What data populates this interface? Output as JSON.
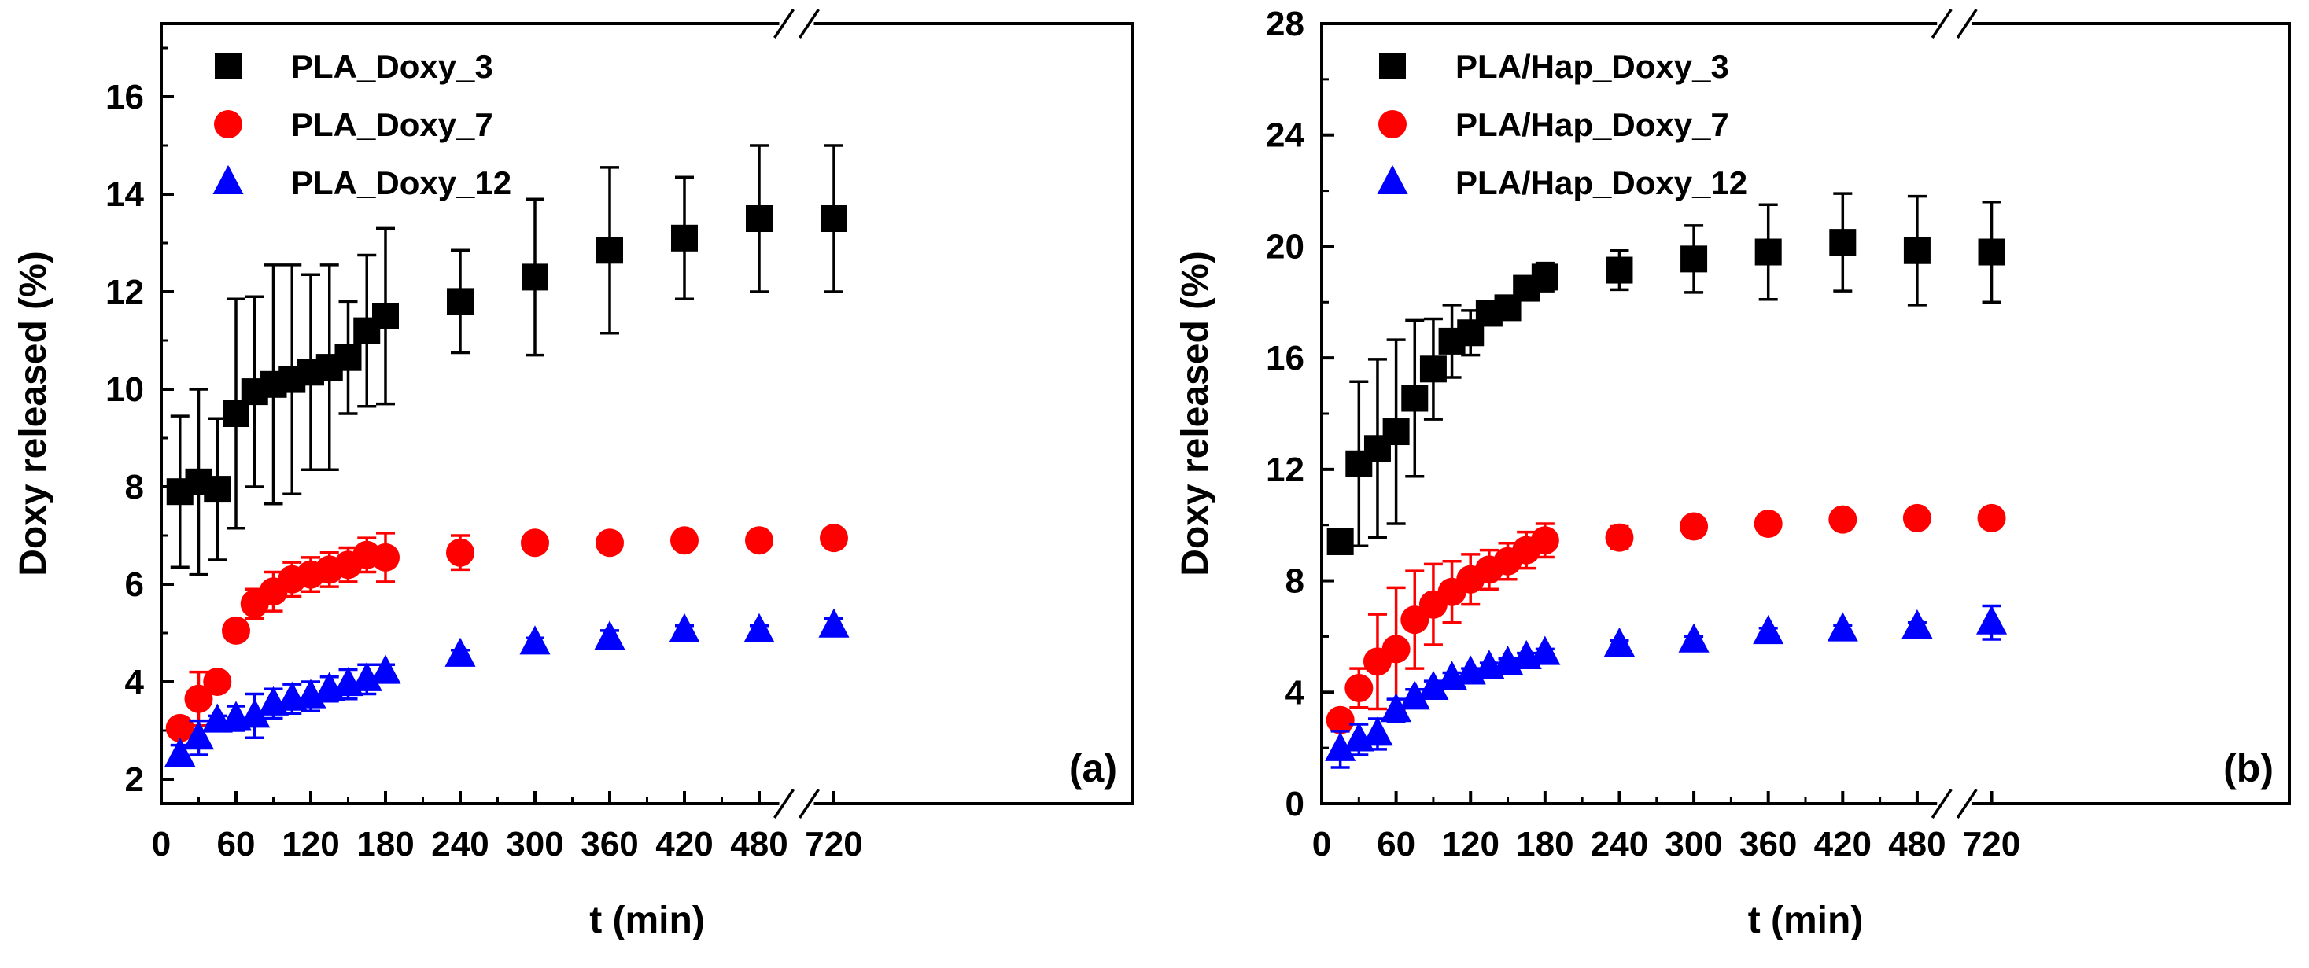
{
  "chart_data": [
    {
      "type": "scatter",
      "panel_label": "(a)",
      "xlabel": "t (min)",
      "ylabel": "Doxy released (%)",
      "xlim": [
        0,
        780
      ],
      "ylim": [
        1.5,
        17.5
      ],
      "x_ticks": [
        0,
        60,
        120,
        180,
        240,
        300,
        360,
        420,
        480,
        720
      ],
      "y_ticks": [
        2,
        4,
        6,
        8,
        10,
        12,
        14,
        16
      ],
      "axis_break": "between 480 and 720",
      "legend_position": "top-left",
      "series": [
        {
          "name": "PLA_Doxy_3",
          "marker": "square",
          "color": "#000000",
          "x": [
            15,
            30,
            45,
            60,
            75,
            90,
            105,
            120,
            135,
            150,
            165,
            180,
            240,
            300,
            360,
            420,
            480,
            720
          ],
          "y": [
            7.9,
            8.1,
            7.95,
            9.5,
            9.95,
            10.1,
            10.2,
            10.35,
            10.45,
            10.65,
            11.2,
            11.5,
            11.8,
            12.3,
            12.85,
            13.1,
            13.5,
            13.5
          ],
          "err": [
            1.55,
            1.9,
            1.45,
            2.35,
            1.95,
            2.45,
            2.35,
            2.0,
            2.1,
            1.15,
            1.55,
            1.8,
            1.05,
            1.6,
            1.7,
            1.25,
            1.5,
            1.5
          ]
        },
        {
          "name": "PLA_Doxy_7",
          "marker": "circle",
          "color": "#ff0000",
          "x": [
            15,
            30,
            45,
            60,
            75,
            90,
            105,
            120,
            135,
            150,
            165,
            180,
            240,
            300,
            360,
            420,
            480,
            720
          ],
          "y": [
            3.05,
            3.65,
            4.0,
            5.05,
            5.6,
            5.85,
            6.1,
            6.2,
            6.3,
            6.4,
            6.6,
            6.55,
            6.65,
            6.85,
            6.85,
            6.9,
            6.9,
            6.95
          ],
          "err": [
            0.05,
            0.55,
            0.05,
            0.2,
            0.3,
            0.4,
            0.35,
            0.35,
            0.35,
            0.35,
            0.35,
            0.5,
            0.35,
            0.1,
            0.15,
            0.1,
            0.1,
            0.1
          ]
        },
        {
          "name": "PLA_Doxy_12",
          "marker": "triangle",
          "color": "#0000ff",
          "x": [
            15,
            30,
            45,
            60,
            75,
            90,
            105,
            120,
            135,
            150,
            165,
            180,
            240,
            300,
            360,
            420,
            480,
            720
          ],
          "y": [
            2.5,
            2.85,
            3.2,
            3.25,
            3.3,
            3.55,
            3.65,
            3.7,
            3.85,
            3.95,
            4.05,
            4.2,
            4.55,
            4.8,
            4.9,
            5.05,
            5.05,
            5.15
          ],
          "err": [
            0.2,
            0.35,
            0.1,
            0.25,
            0.45,
            0.3,
            0.3,
            0.3,
            0.25,
            0.3,
            0.3,
            0.15,
            0.1,
            0.1,
            0.15,
            0.1,
            0.1,
            0.15
          ]
        }
      ]
    },
    {
      "type": "scatter",
      "panel_label": "(b)",
      "xlabel": "t (min)",
      "ylabel": "Doxy released (%)",
      "xlim": [
        0,
        780
      ],
      "ylim": [
        0,
        28
      ],
      "x_ticks": [
        0,
        60,
        120,
        180,
        240,
        300,
        360,
        420,
        480,
        720
      ],
      "y_ticks": [
        0,
        4,
        8,
        12,
        16,
        20,
        24,
        28
      ],
      "axis_break": "between 480 and 720",
      "legend_position": "top-left",
      "series": [
        {
          "name": "PLA/Hap_Doxy_3",
          "marker": "square",
          "color": "#000000",
          "x": [
            15,
            30,
            45,
            60,
            75,
            90,
            105,
            120,
            135,
            150,
            165,
            180,
            240,
            300,
            360,
            420,
            480,
            720
          ],
          "y": [
            9.4,
            12.2,
            12.75,
            13.35,
            14.55,
            15.6,
            16.6,
            16.9,
            17.6,
            17.8,
            18.5,
            18.9,
            19.15,
            19.55,
            19.8,
            20.15,
            19.85,
            19.8
          ],
          "err": [
            0.1,
            2.95,
            3.2,
            3.3,
            2.8,
            1.8,
            1.3,
            0.8,
            0.25,
            0.25,
            0.35,
            0.5,
            0.7,
            1.2,
            1.7,
            1.75,
            1.95,
            1.8
          ]
        },
        {
          "name": "PLA/Hap_Doxy_7",
          "marker": "circle",
          "color": "#ff0000",
          "x": [
            15,
            30,
            45,
            60,
            75,
            90,
            105,
            120,
            135,
            150,
            165,
            180,
            240,
            300,
            360,
            420,
            480,
            720
          ],
          "y": [
            3.0,
            4.15,
            5.1,
            5.55,
            6.6,
            7.15,
            7.6,
            8.05,
            8.4,
            8.7,
            9.1,
            9.45,
            9.55,
            9.95,
            10.05,
            10.2,
            10.25,
            10.25
          ],
          "err": [
            0.2,
            0.7,
            1.7,
            2.2,
            1.75,
            1.45,
            1.1,
            0.9,
            0.7,
            0.65,
            0.65,
            0.6,
            0.4,
            0.3,
            0.3,
            0.25,
            0.25,
            0.25
          ]
        },
        {
          "name": "PLA/Hap_Doxy_12",
          "marker": "triangle",
          "color": "#0000ff",
          "x": [
            15,
            30,
            45,
            60,
            75,
            90,
            105,
            120,
            135,
            150,
            165,
            180,
            240,
            300,
            360,
            420,
            480,
            720
          ],
          "y": [
            1.95,
            2.3,
            2.5,
            3.35,
            3.8,
            4.15,
            4.5,
            4.7,
            4.9,
            5.05,
            5.25,
            5.4,
            5.7,
            5.85,
            6.15,
            6.25,
            6.35,
            6.5
          ],
          "err": [
            0.65,
            0.55,
            0.55,
            0.4,
            0.3,
            0.25,
            0.2,
            0.15,
            0.15,
            0.15,
            0.15,
            0.15,
            0.15,
            0.15,
            0.15,
            0.15,
            0.15,
            0.6
          ]
        }
      ]
    }
  ]
}
